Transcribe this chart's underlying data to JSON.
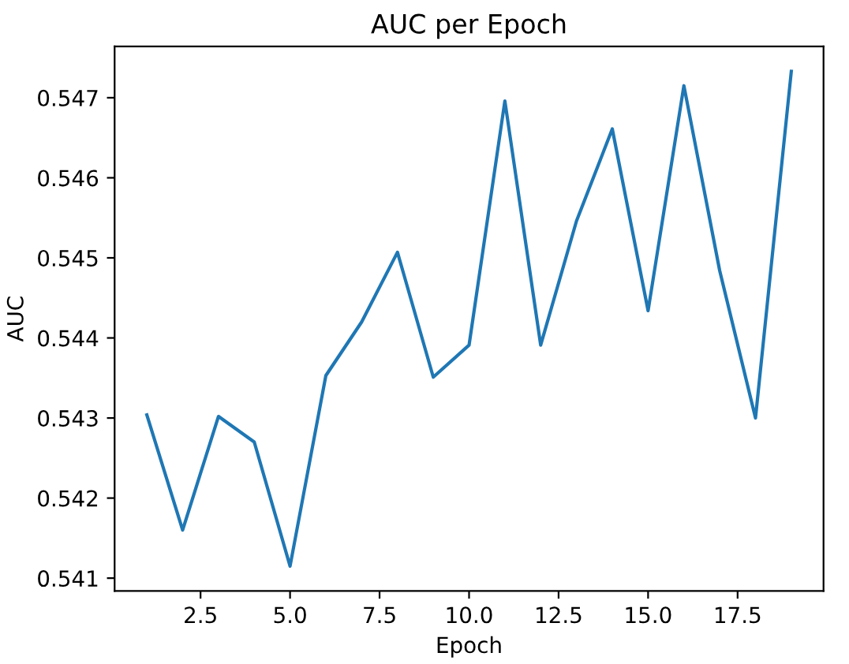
{
  "chart_data": {
    "type": "line",
    "title": "AUC per Epoch",
    "xlabel": "Epoch",
    "ylabel": "AUC",
    "x": [
      1,
      2,
      3,
      4,
      5,
      6,
      7,
      8,
      9,
      10,
      11,
      12,
      13,
      14,
      15,
      16,
      17,
      18,
      19
    ],
    "series": [
      {
        "color": "#1f77b4",
        "values": [
          0.54304,
          0.5416,
          0.54302,
          0.5427,
          0.54115,
          0.54353,
          0.5442,
          0.54507,
          0.54351,
          0.54391,
          0.54696,
          0.54391,
          0.54546,
          0.54661,
          0.54434,
          0.54715,
          0.54484,
          0.543,
          0.54733
        ]
      }
    ],
    "xlim": [
      0.1,
      19.9
    ],
    "ylim": [
      0.54084,
      0.54764
    ],
    "xticks": [
      {
        "value": 2.5,
        "label": "2.5"
      },
      {
        "value": 5,
        "label": "5.0"
      },
      {
        "value": 7.5,
        "label": "7.5"
      },
      {
        "value": 10,
        "label": "10.0"
      },
      {
        "value": 12.5,
        "label": "12.5"
      },
      {
        "value": 15,
        "label": "15.0"
      },
      {
        "value": 17.5,
        "label": "17.5"
      }
    ],
    "yticks": [
      0.541,
      0.542,
      0.543,
      0.544,
      0.545,
      0.546,
      0.547
    ],
    "grid": false,
    "legend": false,
    "marker": "none",
    "line_style": "solid"
  }
}
